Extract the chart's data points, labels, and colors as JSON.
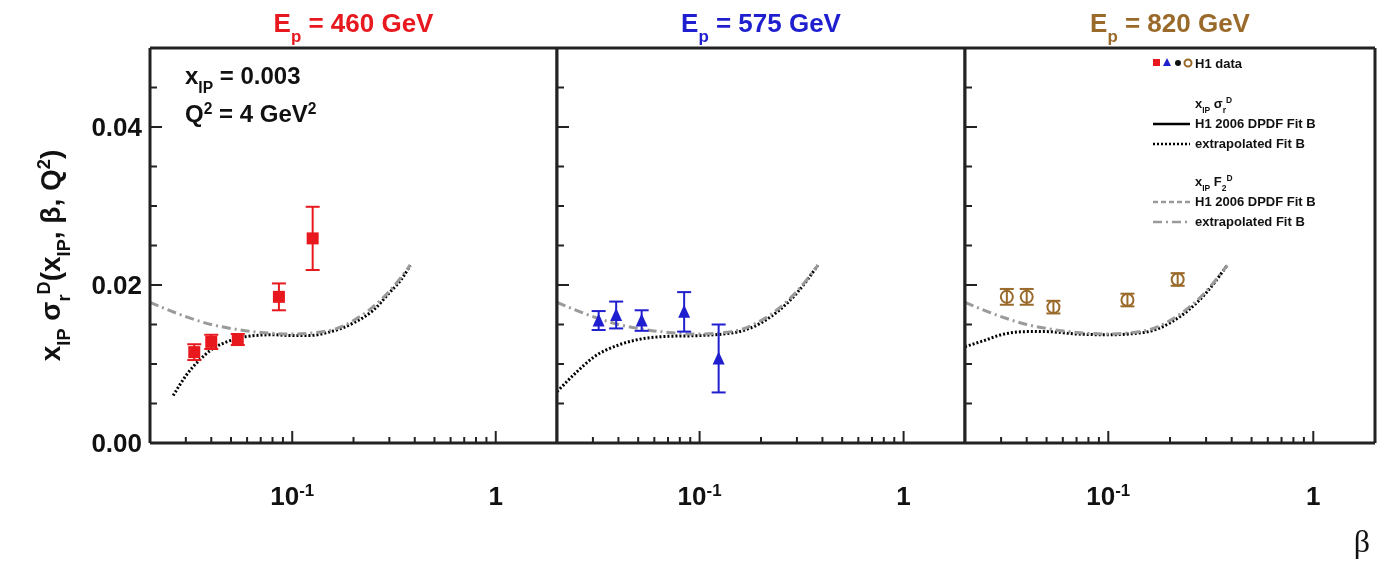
{
  "chart_data": [
    {
      "type": "scatter",
      "title": "E$_{p}$ = 460 GeV",
      "ylabel": "x$_{IP}$ σ$_{r}$$^{D}$(x$_{IP}$, β, Q$^{2}$)",
      "log": "x",
      "xlim": [
        0.02,
        2
      ],
      "ylim": [
        0,
        0.05
      ],
      "xticks": [
        {
          "value": 0.02,
          "label": null
        },
        {
          "value": 0.03,
          "label": null
        },
        {
          "value": 0.04,
          "label": null
        },
        {
          "value": 0.05,
          "label": null
        },
        {
          "value": 0.06,
          "label": null
        },
        {
          "value": 0.07,
          "label": null
        },
        {
          "value": 0.08,
          "label": null
        },
        {
          "value": 0.09,
          "label": null
        },
        {
          "value": 0.1,
          "label": "10$^{-1}$"
        },
        {
          "value": 0.2,
          "label": null
        },
        {
          "value": 0.3,
          "label": null
        },
        {
          "value": 0.4,
          "label": null
        },
        {
          "value": 0.5,
          "label": null
        },
        {
          "value": 0.6,
          "label": null
        },
        {
          "value": 0.7,
          "label": null
        },
        {
          "value": 0.8,
          "label": null
        },
        {
          "value": 0.9,
          "label": null
        },
        {
          "value": 1,
          "label": "1"
        },
        {
          "value": 2,
          "label": null
        }
      ],
      "yticks": [
        {
          "value": 0,
          "label": "0.00"
        },
        {
          "value": 0.005,
          "label": null
        },
        {
          "value": 0.01,
          "label": null
        },
        {
          "value": 0.015,
          "label": null
        },
        {
          "value": 0.02,
          "label": "0.02"
        },
        {
          "value": 0.025,
          "label": null
        },
        {
          "value": 0.03,
          "label": null
        },
        {
          "value": 0.035,
          "label": null
        },
        {
          "value": 0.04,
          "label": "0.04"
        },
        {
          "value": 0.045,
          "label": null
        }
      ],
      "annotations": [
        "x$_{IP}$ = 0.003",
        "Q$^{2}$ = 4 GeV$^{2}$"
      ],
      "series": [
        {
          "type": "line",
          "color": "#000000",
          "line_style": "dotted",
          "x": [
            0.026,
            0.03,
            0.035,
            0.04,
            0.05,
            0.06,
            0.08,
            0.1,
            0.12,
            0.15,
            0.2,
            0.25,
            0.3,
            0.35,
            0.38
          ],
          "values": [
            0.006,
            0.0085,
            0.0105,
            0.0118,
            0.013,
            0.0135,
            0.0137,
            0.0136,
            0.0136,
            0.014,
            0.0152,
            0.0168,
            0.019,
            0.021,
            0.0225
          ]
        },
        {
          "type": "line",
          "color": "#9a9a9a",
          "line_style": "dashed",
          "x": [
            0.02,
            0.03,
            0.04,
            0.05,
            0.07,
            0.1,
            0.15,
            0.2,
            0.3,
            0.38
          ],
          "values": [
            0.0178,
            0.016,
            0.015,
            0.0145,
            0.014,
            0.0138,
            0.0142,
            0.0155,
            0.0192,
            0.0225
          ]
        },
        {
          "color": "#e8191e",
          "marker": "square",
          "x": [
            0.033,
            0.04,
            0.054,
            0.086,
            0.126
          ],
          "values": [
            0.0115,
            0.0128,
            0.0131,
            0.0185,
            0.0259
          ],
          "errors": [
            0.001,
            0.0009,
            0.0007,
            0.0017,
            0.004
          ]
        }
      ]
    },
    {
      "type": "scatter",
      "title": "E$_{p}$ = 575 GeV",
      "log": "x",
      "xlim": [
        0.02,
        2
      ],
      "ylim": [
        0,
        0.05
      ],
      "tick_labels": "x",
      "xticks": [
        {
          "value": 0.02,
          "label": null
        },
        {
          "value": 0.03,
          "label": null
        },
        {
          "value": 0.04,
          "label": null
        },
        {
          "value": 0.05,
          "label": null
        },
        {
          "value": 0.06,
          "label": null
        },
        {
          "value": 0.07,
          "label": null
        },
        {
          "value": 0.08,
          "label": null
        },
        {
          "value": 0.09,
          "label": null
        },
        {
          "value": 0.1,
          "label": "10$^{-1}$"
        },
        {
          "value": 0.2,
          "label": null
        },
        {
          "value": 0.3,
          "label": null
        },
        {
          "value": 0.4,
          "label": null
        },
        {
          "value": 0.5,
          "label": null
        },
        {
          "value": 0.6,
          "label": null
        },
        {
          "value": 0.7,
          "label": null
        },
        {
          "value": 0.8,
          "label": null
        },
        {
          "value": 0.9,
          "label": null
        },
        {
          "value": 1,
          "label": "1"
        },
        {
          "value": 2,
          "label": null
        }
      ],
      "yticks": [
        {
          "value": 0,
          "label": null
        },
        {
          "value": 0.005,
          "label": null
        },
        {
          "value": 0.01,
          "label": null
        },
        {
          "value": 0.015,
          "label": null
        },
        {
          "value": 0.02,
          "label": null
        },
        {
          "value": 0.025,
          "label": null
        },
        {
          "value": 0.03,
          "label": null
        },
        {
          "value": 0.035,
          "label": null
        },
        {
          "value": 0.04,
          "label": null
        },
        {
          "value": 0.045,
          "label": null
        }
      ],
      "series": [
        {
          "type": "line",
          "color": "#000000",
          "line_style": "dotted",
          "x": [
            0.02,
            0.025,
            0.03,
            0.04,
            0.05,
            0.07,
            0.1,
            0.15,
            0.2,
            0.3,
            0.38
          ],
          "values": [
            0.0065,
            0.009,
            0.0108,
            0.0124,
            0.0131,
            0.0135,
            0.0136,
            0.014,
            0.0152,
            0.019,
            0.0225
          ]
        },
        {
          "type": "line",
          "color": "#9a9a9a",
          "line_style": "dashed",
          "x": [
            0.02,
            0.03,
            0.04,
            0.05,
            0.07,
            0.1,
            0.15,
            0.2,
            0.3,
            0.38
          ],
          "values": [
            0.0178,
            0.016,
            0.015,
            0.0145,
            0.014,
            0.0138,
            0.0142,
            0.0155,
            0.0192,
            0.0225
          ]
        },
        {
          "color": "#1f1fd0",
          "marker": "triangle",
          "x": [
            0.032,
            0.039,
            0.052,
            0.084,
            0.124
          ],
          "values": [
            0.0155,
            0.0162,
            0.0155,
            0.0166,
            0.0107
          ],
          "errors": [
            0.0012,
            0.0017,
            0.0013,
            0.0025,
            0.0043
          ]
        }
      ]
    },
    {
      "type": "scatter",
      "title": "E$_{p}$ = 820 GeV",
      "xlabel": "β",
      "log": "x",
      "xlim": [
        0.02,
        2
      ],
      "ylim": [
        0,
        0.05
      ],
      "tick_labels": "x",
      "legend": "top right",
      "xticks": [
        {
          "value": 0.02,
          "label": null
        },
        {
          "value": 0.03,
          "label": null
        },
        {
          "value": 0.04,
          "label": null
        },
        {
          "value": 0.05,
          "label": null
        },
        {
          "value": 0.06,
          "label": null
        },
        {
          "value": 0.07,
          "label": null
        },
        {
          "value": 0.08,
          "label": null
        },
        {
          "value": 0.09,
          "label": null
        },
        {
          "value": 0.1,
          "label": "10$^{-1}$"
        },
        {
          "value": 0.2,
          "label": null
        },
        {
          "value": 0.3,
          "label": null
        },
        {
          "value": 0.4,
          "label": null
        },
        {
          "value": 0.5,
          "label": null
        },
        {
          "value": 0.6,
          "label": null
        },
        {
          "value": 0.7,
          "label": null
        },
        {
          "value": 0.8,
          "label": null
        },
        {
          "value": 0.9,
          "label": null
        },
        {
          "value": 1,
          "label": "1"
        },
        {
          "value": 2,
          "label": null
        }
      ],
      "yticks": [
        {
          "value": 0,
          "label": null
        },
        {
          "value": 0.005,
          "label": null
        },
        {
          "value": 0.01,
          "label": null
        },
        {
          "value": 0.015,
          "label": null
        },
        {
          "value": 0.02,
          "label": null
        },
        {
          "value": 0.025,
          "label": null
        },
        {
          "value": 0.03,
          "label": null
        },
        {
          "value": 0.035,
          "label": null
        },
        {
          "value": 0.04,
          "label": null
        },
        {
          "value": 0.045,
          "label": null
        }
      ],
      "annotations": [
        "x$_{IP}$ σ$_{r}$$^{D}$",
        "H1 2006 DPDF Fit B",
        "x$_{IP}$ F$_{2}$$^{D}$",
        "H1 2006 DPDF Fit B"
      ],
      "series": [
        {
          "name": "extrapolated Fit B",
          "type": "line",
          "color": "#000000",
          "line_style": "dotted",
          "x": [
            0.02,
            0.025,
            0.03,
            0.04,
            0.05,
            0.07,
            0.1,
            0.15,
            0.2,
            0.3,
            0.38
          ],
          "values": [
            0.0122,
            0.013,
            0.0137,
            0.0141,
            0.0141,
            0.0138,
            0.0137,
            0.014,
            0.0152,
            0.019,
            0.0225
          ]
        },
        {
          "name": "extrapolated Fit B",
          "type": "line",
          "color": "#9a9a9a",
          "line_style": "dashed",
          "x": [
            0.02,
            0.03,
            0.04,
            0.05,
            0.07,
            0.1,
            0.15,
            0.2,
            0.3,
            0.38
          ],
          "values": [
            0.0178,
            0.016,
            0.015,
            0.0145,
            0.014,
            0.0138,
            0.0142,
            0.0155,
            0.0192,
            0.0225
          ]
        },
        {
          "name": "H1 data",
          "color": "#9a6a2a",
          "marker": "circle",
          "x": [
            0.032,
            0.04,
            0.054,
            0.124,
            0.218
          ],
          "values": [
            0.0185,
            0.0185,
            0.0172,
            0.0181,
            0.0207
          ],
          "errors": [
            0.001,
            0.001,
            0.0008,
            0.0008,
            0.0008
          ]
        }
      ]
    }
  ]
}
